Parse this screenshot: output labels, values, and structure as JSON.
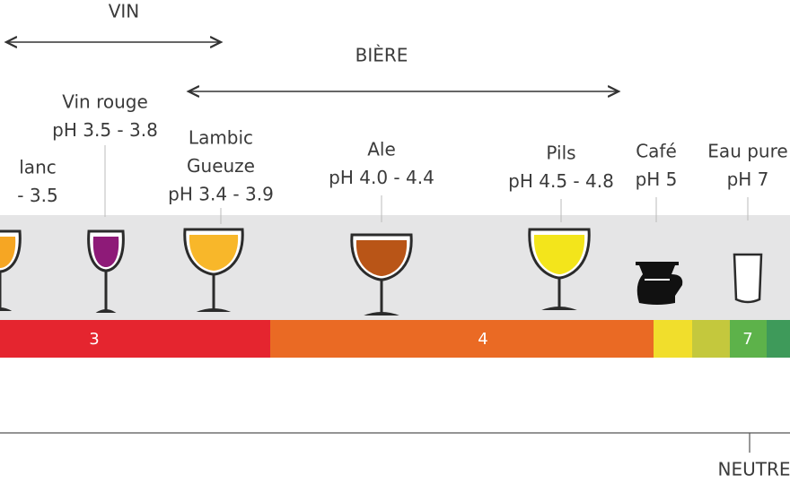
{
  "headers": {
    "wine": "VIN",
    "beer": "BIÈRE"
  },
  "items": [
    {
      "lines": [
        "lanc",
        "- 3.5"
      ]
    },
    {
      "lines": [
        "Vin rouge",
        "pH 3.5 - 3.8"
      ]
    },
    {
      "lines": [
        "Lambic",
        "Gueuze",
        "pH 3.4 - 3.9"
      ]
    },
    {
      "lines": [
        "Ale",
        "pH 4.0 - 4.4"
      ]
    },
    {
      "lines": [
        "Pils",
        "pH 4.5 - 4.8"
      ]
    },
    {
      "lines": [
        "Café",
        "pH 5"
      ]
    },
    {
      "lines": [
        "Eau pure",
        "pH 7"
      ]
    }
  ],
  "scale": {
    "labels": [
      "3",
      "4",
      "7"
    ],
    "neutral": "NEUTRE"
  }
}
